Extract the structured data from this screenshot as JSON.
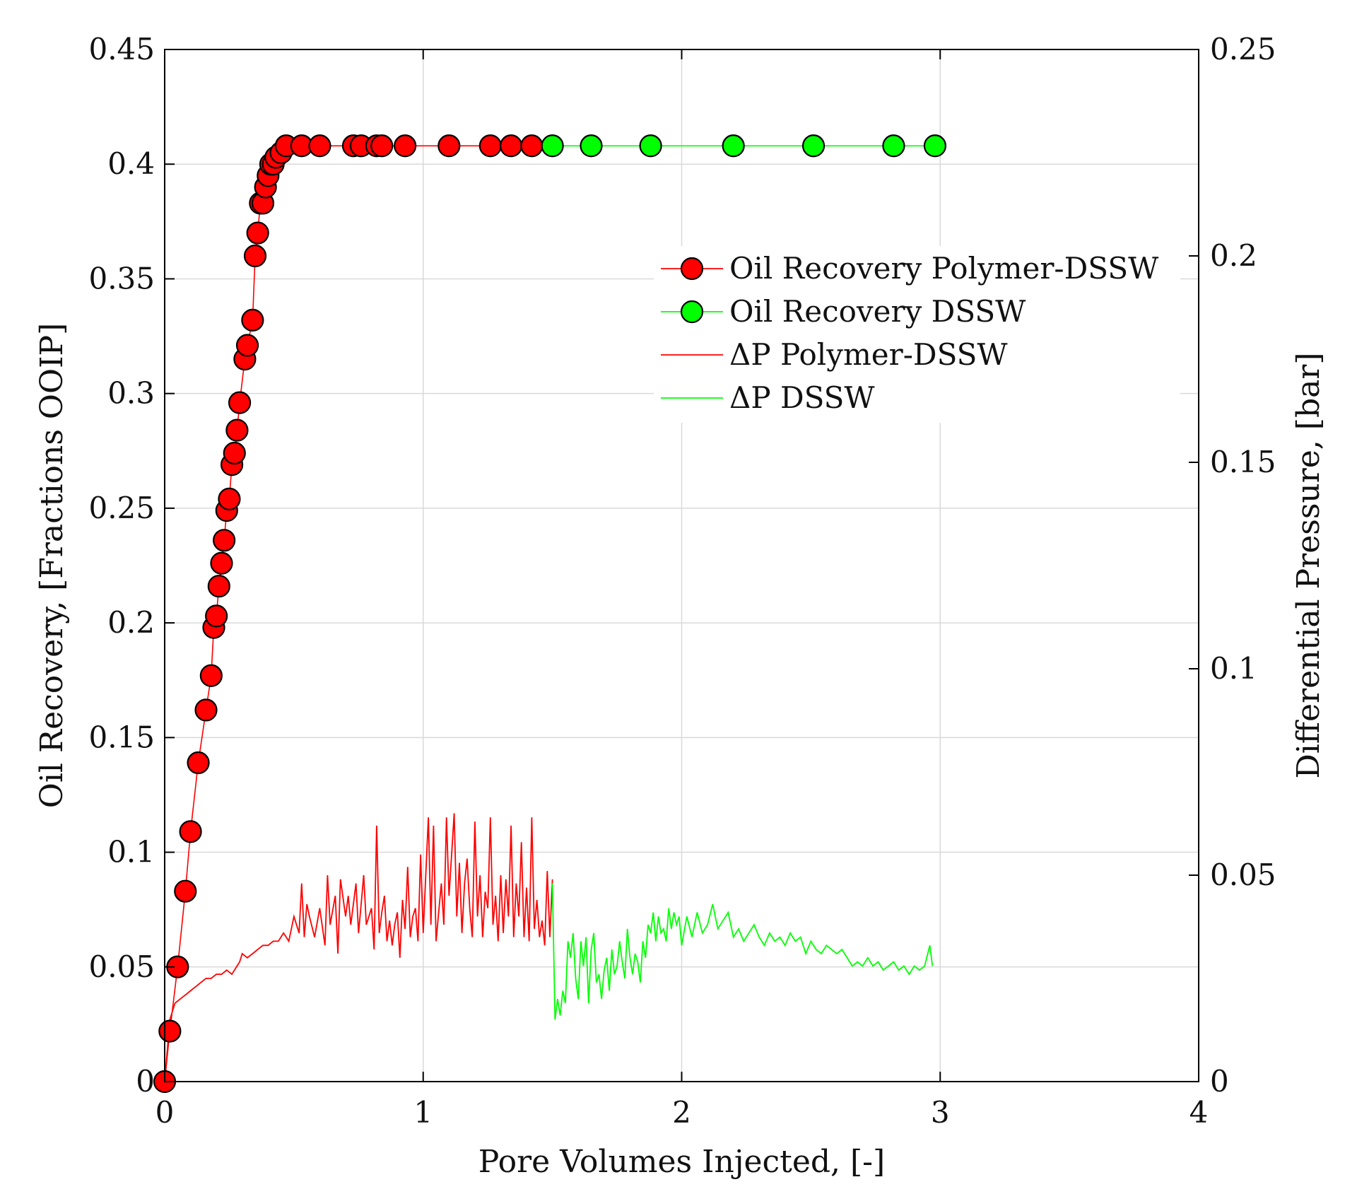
{
  "chart_data": {
    "type": "line",
    "xlabel": "Pore Volumes Injected, [-]",
    "ylabel_left": "Oil Recovery, [Fractions OOIP]",
    "ylabel_right": "Differential Pressure, [bar]",
    "xlim": [
      0,
      4
    ],
    "ylim_left": [
      0,
      0.45
    ],
    "ylim_right": [
      0,
      0.25
    ],
    "x_ticks": [
      0,
      1,
      2,
      3,
      4
    ],
    "x_tick_labels": [
      "0",
      "1",
      "2",
      "3",
      "4"
    ],
    "y_left_ticks": [
      0,
      0.05,
      0.1,
      0.15,
      0.2,
      0.25,
      0.3,
      0.35,
      0.4,
      0.45
    ],
    "y_left_tick_labels": [
      "0",
      "0.05",
      "0.1",
      "0.15",
      "0.2",
      "0.25",
      "0.3",
      "0.35",
      "0.4",
      "0.45"
    ],
    "y_right_ticks": [
      0,
      0.05,
      0.1,
      0.15,
      0.2,
      0.25
    ],
    "y_right_tick_labels": [
      "0",
      "0.05",
      "0.1",
      "0.15",
      "0.2",
      "0.25"
    ],
    "grid": true,
    "legend_position": "upper-right",
    "colors": {
      "red": "#ff0000",
      "green": "#00ff00",
      "marker_edge": "#000000"
    },
    "series": [
      {
        "name": "Oil Recovery Polymer-DSSW",
        "axis": "left",
        "style": "line-marker",
        "color": "#ff0000",
        "x": [
          0.0,
          0.02,
          0.05,
          0.08,
          0.1,
          0.13,
          0.16,
          0.18,
          0.19,
          0.2,
          0.21,
          0.22,
          0.23,
          0.24,
          0.25,
          0.26,
          0.27,
          0.28,
          0.29,
          0.31,
          0.32,
          0.34,
          0.35,
          0.36,
          0.37,
          0.38,
          0.39,
          0.4,
          0.41,
          0.42,
          0.43,
          0.45,
          0.47,
          0.53,
          0.6,
          0.73,
          0.76,
          0.82,
          0.84,
          0.93,
          1.1,
          1.26,
          1.34,
          1.42
        ],
        "y": [
          0.0,
          0.022,
          0.05,
          0.083,
          0.109,
          0.139,
          0.162,
          0.177,
          0.198,
          0.203,
          0.216,
          0.226,
          0.236,
          0.249,
          0.254,
          0.269,
          0.274,
          0.284,
          0.296,
          0.315,
          0.321,
          0.332,
          0.36,
          0.37,
          0.383,
          0.383,
          0.39,
          0.395,
          0.4,
          0.4,
          0.403,
          0.405,
          0.408,
          0.408,
          0.408,
          0.408,
          0.408,
          0.408,
          0.408,
          0.408,
          0.408,
          0.408,
          0.408,
          0.408
        ]
      },
      {
        "name": "Oil Recovery DSSW",
        "axis": "left",
        "style": "line-marker",
        "color": "#00ff00",
        "x": [
          1.5,
          1.65,
          1.88,
          2.2,
          2.51,
          2.82,
          2.98
        ],
        "y": [
          0.408,
          0.408,
          0.408,
          0.408,
          0.408,
          0.408,
          0.408
        ]
      },
      {
        "name": "ΔP Polymer-DSSW",
        "axis": "right",
        "style": "line",
        "color": "#ff0000",
        "x": [
          0.0,
          0.02,
          0.04,
          0.06,
          0.08,
          0.1,
          0.12,
          0.14,
          0.16,
          0.18,
          0.2,
          0.22,
          0.24,
          0.26,
          0.28,
          0.29,
          0.3,
          0.32,
          0.34,
          0.36,
          0.38,
          0.4,
          0.42,
          0.44,
          0.46,
          0.48,
          0.5,
          0.52,
          0.53,
          0.54,
          0.55,
          0.56,
          0.58,
          0.6,
          0.62,
          0.63,
          0.64,
          0.66,
          0.67,
          0.68,
          0.7,
          0.71,
          0.72,
          0.74,
          0.75,
          0.76,
          0.77,
          0.78,
          0.8,
          0.81,
          0.82,
          0.83,
          0.84,
          0.85,
          0.86,
          0.87,
          0.88,
          0.89,
          0.9,
          0.91,
          0.92,
          0.93,
          0.94,
          0.95,
          0.96,
          0.97,
          0.98,
          0.99,
          1.0,
          1.01,
          1.02,
          1.03,
          1.04,
          1.05,
          1.06,
          1.07,
          1.08,
          1.09,
          1.1,
          1.11,
          1.12,
          1.13,
          1.14,
          1.15,
          1.16,
          1.17,
          1.18,
          1.19,
          1.2,
          1.21,
          1.22,
          1.23,
          1.24,
          1.25,
          1.26,
          1.27,
          1.28,
          1.29,
          1.3,
          1.31,
          1.32,
          1.33,
          1.34,
          1.35,
          1.36,
          1.37,
          1.38,
          1.39,
          1.4,
          1.41,
          1.42,
          1.43,
          1.44,
          1.45,
          1.46,
          1.47,
          1.48,
          1.49,
          1.5
        ],
        "y": [
          0.0,
          0.015,
          0.019,
          0.02,
          0.021,
          0.022,
          0.023,
          0.024,
          0.025,
          0.025,
          0.026,
          0.026,
          0.027,
          0.026,
          0.028,
          0.029,
          0.031,
          0.03,
          0.031,
          0.032,
          0.033,
          0.033,
          0.034,
          0.034,
          0.036,
          0.034,
          0.04,
          0.036,
          0.048,
          0.035,
          0.043,
          0.04,
          0.035,
          0.042,
          0.033,
          0.05,
          0.038,
          0.045,
          0.031,
          0.049,
          0.04,
          0.045,
          0.038,
          0.048,
          0.036,
          0.043,
          0.05,
          0.038,
          0.042,
          0.032,
          0.062,
          0.036,
          0.041,
          0.045,
          0.034,
          0.039,
          0.033,
          0.038,
          0.041,
          0.03,
          0.044,
          0.037,
          0.052,
          0.035,
          0.04,
          0.042,
          0.034,
          0.055,
          0.036,
          0.05,
          0.064,
          0.038,
          0.062,
          0.034,
          0.041,
          0.048,
          0.038,
          0.064,
          0.045,
          0.055,
          0.065,
          0.04,
          0.053,
          0.036,
          0.048,
          0.054,
          0.042,
          0.035,
          0.063,
          0.04,
          0.05,
          0.035,
          0.046,
          0.042,
          0.064,
          0.038,
          0.045,
          0.034,
          0.05,
          0.036,
          0.049,
          0.04,
          0.062,
          0.035,
          0.048,
          0.04,
          0.058,
          0.035,
          0.047,
          0.034,
          0.064,
          0.037,
          0.044,
          0.035,
          0.039,
          0.033,
          0.051,
          0.035,
          0.049
        ]
      },
      {
        "name": "ΔP DSSW",
        "axis": "right",
        "style": "line",
        "color": "#00ff00",
        "x": [
          1.5,
          1.51,
          1.52,
          1.53,
          1.54,
          1.55,
          1.56,
          1.57,
          1.58,
          1.59,
          1.6,
          1.61,
          1.62,
          1.63,
          1.64,
          1.65,
          1.66,
          1.67,
          1.68,
          1.69,
          1.7,
          1.71,
          1.72,
          1.73,
          1.74,
          1.75,
          1.76,
          1.77,
          1.78,
          1.79,
          1.8,
          1.81,
          1.82,
          1.83,
          1.84,
          1.85,
          1.86,
          1.87,
          1.88,
          1.89,
          1.9,
          1.91,
          1.92,
          1.93,
          1.94,
          1.95,
          1.96,
          1.97,
          1.98,
          1.99,
          2.0,
          2.02,
          2.04,
          2.06,
          2.08,
          2.1,
          2.12,
          2.14,
          2.16,
          2.18,
          2.2,
          2.22,
          2.24,
          2.26,
          2.28,
          2.3,
          2.32,
          2.34,
          2.36,
          2.38,
          2.4,
          2.42,
          2.44,
          2.46,
          2.48,
          2.5,
          2.52,
          2.54,
          2.56,
          2.58,
          2.6,
          2.62,
          2.64,
          2.66,
          2.68,
          2.7,
          2.72,
          2.74,
          2.76,
          2.78,
          2.8,
          2.82,
          2.84,
          2.86,
          2.88,
          2.9,
          2.92,
          2.94,
          2.96,
          2.97
        ],
        "y": [
          0.048,
          0.015,
          0.02,
          0.016,
          0.022,
          0.019,
          0.034,
          0.03,
          0.036,
          0.025,
          0.02,
          0.034,
          0.028,
          0.035,
          0.019,
          0.032,
          0.036,
          0.024,
          0.026,
          0.02,
          0.027,
          0.03,
          0.022,
          0.032,
          0.026,
          0.028,
          0.034,
          0.029,
          0.025,
          0.037,
          0.03,
          0.026,
          0.031,
          0.029,
          0.024,
          0.034,
          0.03,
          0.038,
          0.036,
          0.041,
          0.034,
          0.04,
          0.036,
          0.037,
          0.034,
          0.042,
          0.037,
          0.041,
          0.038,
          0.04,
          0.033,
          0.04,
          0.035,
          0.041,
          0.036,
          0.038,
          0.043,
          0.037,
          0.039,
          0.041,
          0.035,
          0.037,
          0.034,
          0.036,
          0.038,
          0.035,
          0.033,
          0.036,
          0.034,
          0.035,
          0.033,
          0.036,
          0.034,
          0.035,
          0.031,
          0.034,
          0.032,
          0.031,
          0.033,
          0.032,
          0.031,
          0.032,
          0.03,
          0.028,
          0.029,
          0.028,
          0.03,
          0.028,
          0.029,
          0.027,
          0.028,
          0.029,
          0.027,
          0.028,
          0.026,
          0.028,
          0.027,
          0.028,
          0.033,
          0.028
        ]
      }
    ]
  }
}
